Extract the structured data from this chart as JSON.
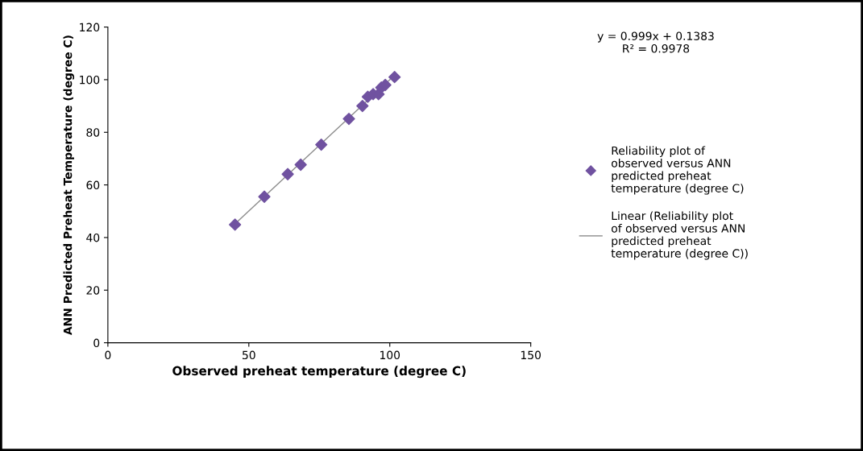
{
  "chart_data": {
    "type": "scatter",
    "xlabel": "Observed preheat temperature (degree C)",
    "ylabel": "ANN Predicted Preheat Temperature (degree C)",
    "xlim": [
      0,
      150
    ],
    "xticks": [
      0,
      50,
      100,
      150
    ],
    "ylim": [
      0,
      120
    ],
    "yticks": [
      0,
      20,
      40,
      60,
      80,
      100,
      120
    ],
    "grid": false,
    "legend": "right",
    "annotations": [
      "y = 0.999x + 0.1383\nR² = 0.9978"
    ],
    "series": [
      {
        "name": "Reliability plot of observed versus ANN predicted preheat temperature (degree C)",
        "color": "#7052a0",
        "marker": "diamond",
        "x": [
          45.1,
          55.5,
          63.8,
          68.4,
          75.7,
          85.5,
          90.3,
          92.2,
          94.1,
          96,
          97,
          98.4,
          101.7
        ],
        "values": [
          44.9,
          55.5,
          64.1,
          67.7,
          75.3,
          85.1,
          90.0,
          93.5,
          94.5,
          94.5,
          97,
          98,
          101
        ]
      },
      {
        "name": "Linear (Reliability plot of observed versus ANN predicted preheat temperature (degree C))",
        "color": "#8c8c8c",
        "type": "line",
        "marker": "none",
        "x": [
          45,
          101.7
        ],
        "values": [
          45.1,
          101.7
        ]
      }
    ]
  }
}
